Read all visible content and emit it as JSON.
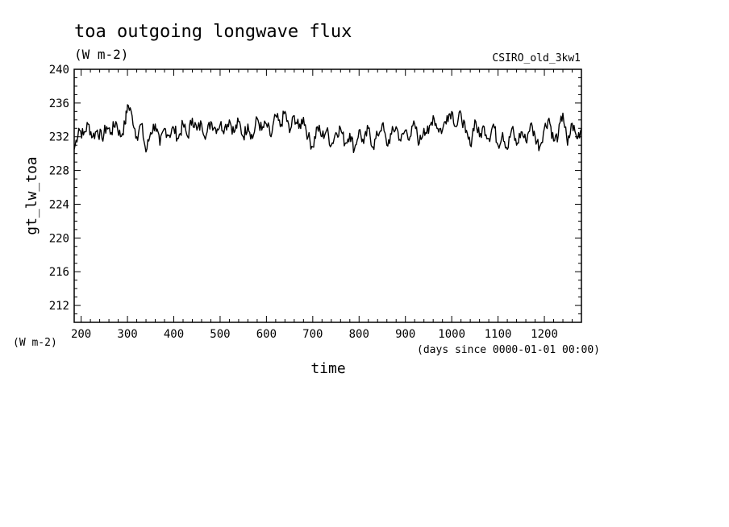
{
  "chart_data": {
    "type": "line",
    "title": "toa outgoing longwave flux",
    "units": "(W m-2)",
    "model_label": "CSIRO_old_3kw1",
    "ylabel": "gt_lw_toa",
    "yunits": "(W m-2)",
    "xlabel": "time",
    "xunits": "(days since 0000-01-01 00:00)",
    "xlim": [
      185,
      1280
    ],
    "ylim": [
      210,
      240
    ],
    "xticks": [
      200,
      300,
      400,
      500,
      600,
      700,
      800,
      900,
      1000,
      1100,
      1200
    ],
    "yticks": [
      212,
      216,
      220,
      224,
      228,
      232,
      236,
      240
    ],
    "grid": false,
    "series": [
      {
        "x": [
          185,
          195,
          205,
          215,
          225,
          235,
          245,
          255,
          265,
          275,
          285,
          295,
          300,
          310,
          320,
          330,
          340,
          350,
          360,
          370,
          380,
          390,
          400,
          410,
          420,
          430,
          440,
          450,
          460,
          470,
          480,
          490,
          500,
          510,
          520,
          530,
          540,
          550,
          560,
          570,
          580,
          590,
          600,
          610,
          620,
          630,
          640,
          650,
          660,
          670,
          680,
          690,
          700,
          710,
          720,
          730,
          740,
          750,
          760,
          770,
          780,
          790,
          800,
          810,
          820,
          830,
          840,
          850,
          860,
          870,
          880,
          890,
          900,
          910,
          920,
          930,
          940,
          950,
          960,
          970,
          980,
          990,
          1000,
          1010,
          1020,
          1030,
          1040,
          1050,
          1060,
          1070,
          1080,
          1090,
          1100,
          1110,
          1120,
          1130,
          1140,
          1150,
          1160,
          1170,
          1180,
          1190,
          1200,
          1210,
          1220,
          1230,
          1240,
          1250,
          1260,
          1270,
          1280
        ],
        "values": [
          230.5,
          233.0,
          232.2,
          233.5,
          232.0,
          232.8,
          231.8,
          233.2,
          232.5,
          233.8,
          232.0,
          233.5,
          235.8,
          234.5,
          232.0,
          233.5,
          230.2,
          232.5,
          233.5,
          231.0,
          233.0,
          232.2,
          233.0,
          231.8,
          233.5,
          232.0,
          234.2,
          232.8,
          233.5,
          232.2,
          233.8,
          233.0,
          233.4,
          233.1,
          234.0,
          232.5,
          233.8,
          232.0,
          233.5,
          231.8,
          234.2,
          232.8,
          233.5,
          232.0,
          234.5,
          233.2,
          235.0,
          232.5,
          234.5,
          233.0,
          234.3,
          232.0,
          230.8,
          233.2,
          232.0,
          232.8,
          231.0,
          232.5,
          233.0,
          231.2,
          232.4,
          230.5,
          232.8,
          231.2,
          233.0,
          230.8,
          232.2,
          233.5,
          231.0,
          232.3,
          233.2,
          231.5,
          232.8,
          232.0,
          233.5,
          231.2,
          233.0,
          232.4,
          234.5,
          233.0,
          232.8,
          234.5,
          235.0,
          233.2,
          234.8,
          232.5,
          231.0,
          234.0,
          232.0,
          233.2,
          231.8,
          233.5,
          231.0,
          232.5,
          230.5,
          233.0,
          231.0,
          232.6,
          231.5,
          233.5,
          232.0,
          230.8,
          233.0,
          234.2,
          231.5,
          232.2,
          234.8,
          231.0,
          233.6,
          231.8,
          233.0
        ]
      }
    ]
  }
}
